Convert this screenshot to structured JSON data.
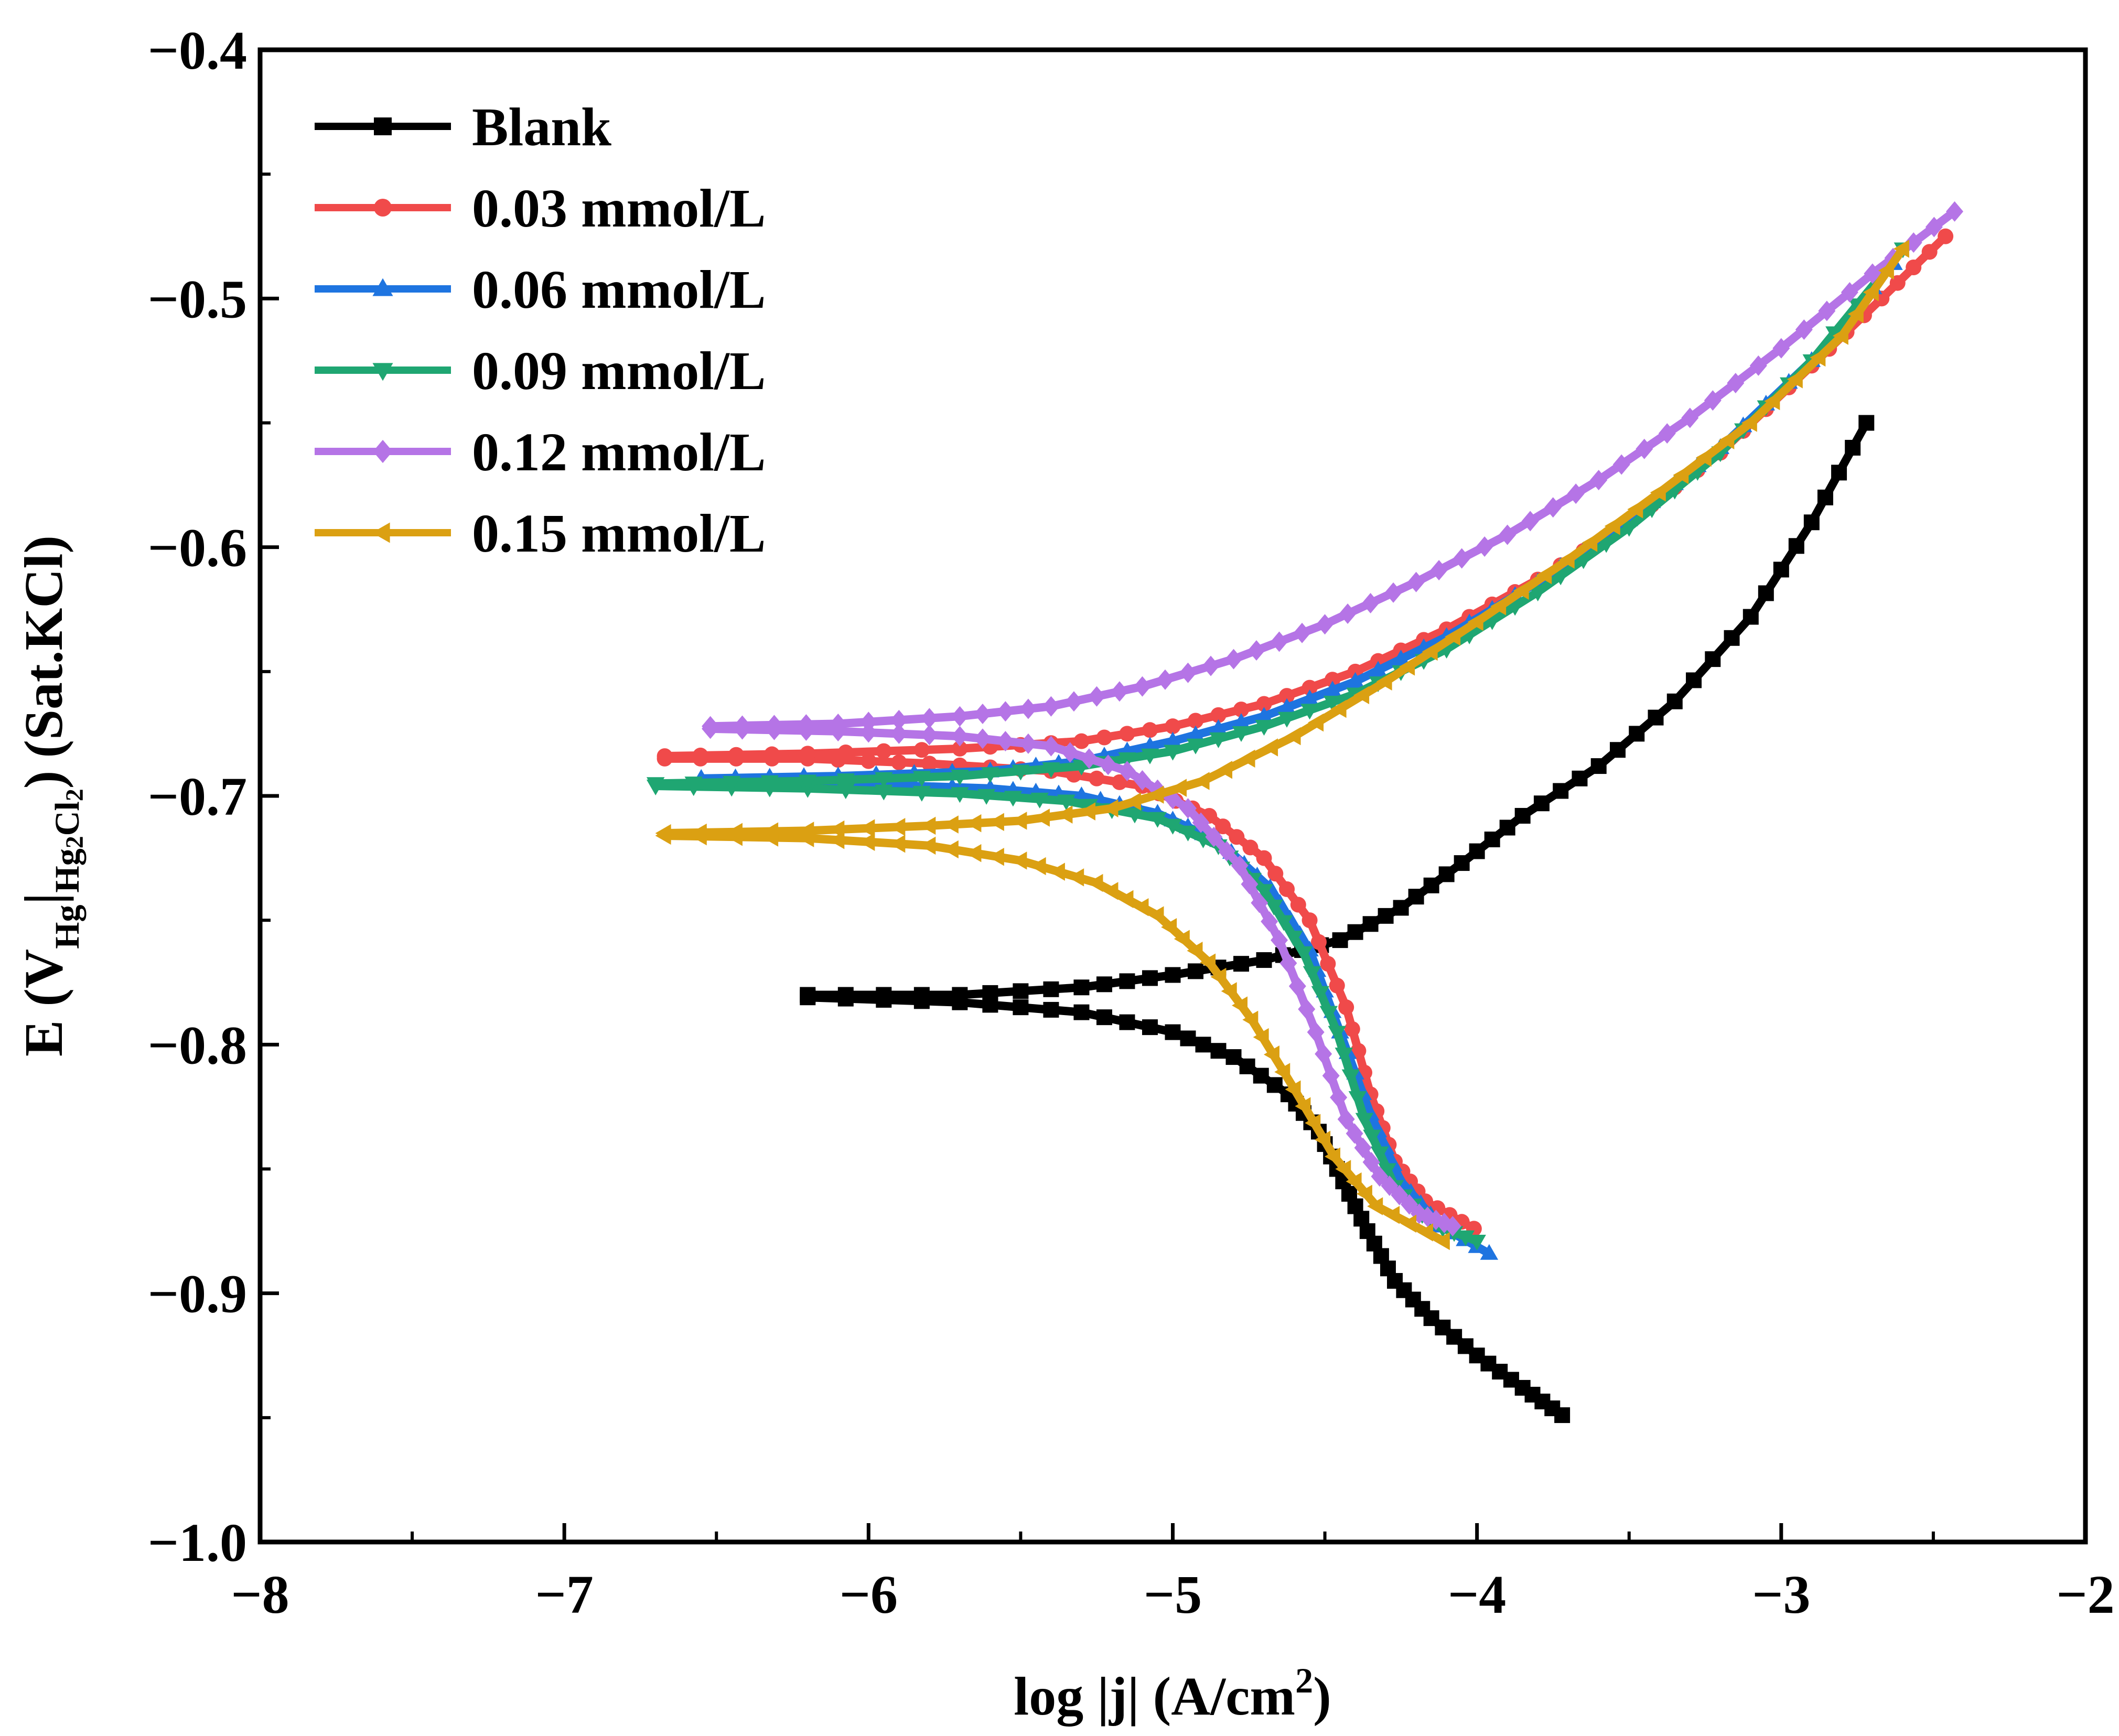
{
  "chart_data": {
    "type": "line",
    "title": "",
    "xlabel": {
      "prefix": "log |j| (A/cm",
      "sup": "2",
      "suffix": ")"
    },
    "ylabel": {
      "e": "E (",
      "v": "V",
      "sub1": "Hg",
      "sep": "|",
      "sub2": "Hg",
      "sub3": "2",
      "sub4": "Cl",
      "sub5": "2",
      "close": ")",
      "ref": "(Sat.KCl)"
    },
    "xlim": [
      -8,
      -2
    ],
    "ylim": [
      -1.0,
      -0.4
    ],
    "x_ticks": [
      -8,
      -7,
      -6,
      -5,
      -4,
      -3,
      -2
    ],
    "x_tick_labels": [
      "−8",
      "−7",
      "−6",
      "−5",
      "−4",
      "−3",
      "−2"
    ],
    "y_ticks": [
      -1.0,
      -0.9,
      -0.8,
      -0.7,
      -0.6,
      -0.5,
      -0.4
    ],
    "y_tick_labels": [
      "−1.0",
      "−0.9",
      "−0.8",
      "−0.7",
      "−0.6",
      "−0.5",
      "−0.4"
    ],
    "grid": false,
    "legend_position": "top-left",
    "series": [
      {
        "name": "Blank",
        "color": "#000000",
        "marker": "square",
        "cathodic": [
          [
            -6.2,
            -0.781
          ],
          [
            -5.7,
            -0.783
          ],
          [
            -5.3,
            -0.787
          ],
          [
            -5.0,
            -0.795
          ],
          [
            -4.8,
            -0.805
          ],
          [
            -4.62,
            -0.82
          ],
          [
            -4.52,
            -0.835
          ],
          [
            -4.44,
            -0.855
          ],
          [
            -4.36,
            -0.875
          ],
          [
            -4.27,
            -0.895
          ],
          [
            -4.15,
            -0.91
          ],
          [
            -4.0,
            -0.925
          ],
          [
            -3.85,
            -0.938
          ],
          [
            -3.72,
            -0.949
          ]
        ],
        "anodic": [
          [
            -6.2,
            -0.78
          ],
          [
            -5.7,
            -0.78
          ],
          [
            -5.3,
            -0.777
          ],
          [
            -5.0,
            -0.772
          ],
          [
            -4.7,
            -0.766
          ],
          [
            -4.45,
            -0.758
          ],
          [
            -4.25,
            -0.745
          ],
          [
            -4.05,
            -0.727
          ],
          [
            -3.85,
            -0.708
          ],
          [
            -3.6,
            -0.688
          ],
          [
            -3.35,
            -0.662
          ],
          [
            -3.1,
            -0.628
          ],
          [
            -2.9,
            -0.59
          ],
          [
            -2.72,
            -0.55
          ]
        ]
      },
      {
        "name": "0.03 mmol/L",
        "color": "#f04a4a",
        "marker": "circle",
        "cathodic": [
          [
            -6.67,
            -0.685
          ],
          [
            -6.2,
            -0.685
          ],
          [
            -5.8,
            -0.687
          ],
          [
            -5.4,
            -0.69
          ],
          [
            -5.1,
            -0.696
          ],
          [
            -4.88,
            -0.708
          ],
          [
            -4.7,
            -0.725
          ],
          [
            -4.55,
            -0.75
          ],
          [
            -4.43,
            -0.785
          ],
          [
            -4.35,
            -0.82
          ],
          [
            -4.27,
            -0.847
          ],
          [
            -4.17,
            -0.863
          ],
          [
            -4.01,
            -0.874
          ]
        ],
        "anodic": [
          [
            -6.67,
            -0.684
          ],
          [
            -6.2,
            -0.683
          ],
          [
            -5.7,
            -0.681
          ],
          [
            -5.3,
            -0.678
          ],
          [
            -5.0,
            -0.672
          ],
          [
            -4.7,
            -0.663
          ],
          [
            -4.4,
            -0.65
          ],
          [
            -4.1,
            -0.633
          ],
          [
            -3.8,
            -0.613
          ],
          [
            -3.5,
            -0.59
          ],
          [
            -3.2,
            -0.562
          ],
          [
            -2.9,
            -0.527
          ],
          [
            -2.67,
            -0.5
          ],
          [
            -2.46,
            -0.475
          ]
        ]
      },
      {
        "name": "0.06 mmol/L",
        "color": "#1e74e0",
        "marker": "triangle-up",
        "cathodic": [
          [
            -6.55,
            -0.694
          ],
          [
            -6.1,
            -0.695
          ],
          [
            -5.6,
            -0.697
          ],
          [
            -5.3,
            -0.7
          ],
          [
            -5.05,
            -0.707
          ],
          [
            -4.85,
            -0.718
          ],
          [
            -4.68,
            -0.737
          ],
          [
            -4.55,
            -0.762
          ],
          [
            -4.45,
            -0.795
          ],
          [
            -4.35,
            -0.828
          ],
          [
            -4.25,
            -0.855
          ],
          [
            -4.12,
            -0.873
          ],
          [
            -3.96,
            -0.884
          ]
        ],
        "anodic": [
          [
            -6.55,
            -0.693
          ],
          [
            -6.1,
            -0.692
          ],
          [
            -5.6,
            -0.69
          ],
          [
            -5.3,
            -0.686
          ],
          [
            -5.0,
            -0.678
          ],
          [
            -4.7,
            -0.668
          ],
          [
            -4.4,
            -0.654
          ],
          [
            -4.1,
            -0.636
          ],
          [
            -3.8,
            -0.614
          ],
          [
            -3.5,
            -0.589
          ],
          [
            -3.2,
            -0.56
          ],
          [
            -2.9,
            -0.525
          ],
          [
            -2.63,
            -0.486
          ]
        ]
      },
      {
        "name": "0.09 mmol/L",
        "color": "#1fa672",
        "marker": "triangle-down",
        "cathodic": [
          [
            -6.7,
            -0.696
          ],
          [
            -6.2,
            -0.697
          ],
          [
            -5.7,
            -0.699
          ],
          [
            -5.35,
            -0.702
          ],
          [
            -5.05,
            -0.709
          ],
          [
            -4.85,
            -0.72
          ],
          [
            -4.7,
            -0.738
          ],
          [
            -4.57,
            -0.763
          ],
          [
            -4.46,
            -0.795
          ],
          [
            -4.37,
            -0.83
          ],
          [
            -4.27,
            -0.857
          ],
          [
            -4.15,
            -0.872
          ],
          [
            -4.0,
            -0.879
          ]
        ],
        "anodic": [
          [
            -6.7,
            -0.695
          ],
          [
            -6.2,
            -0.694
          ],
          [
            -5.7,
            -0.692
          ],
          [
            -5.3,
            -0.688
          ],
          [
            -5.0,
            -0.682
          ],
          [
            -4.7,
            -0.672
          ],
          [
            -4.4,
            -0.659
          ],
          [
            -4.1,
            -0.641
          ],
          [
            -3.8,
            -0.618
          ],
          [
            -3.5,
            -0.592
          ],
          [
            -3.2,
            -0.562
          ],
          [
            -2.9,
            -0.525
          ],
          [
            -2.6,
            -0.48
          ]
        ]
      },
      {
        "name": "0.12 mmol/L",
        "color": "#b574e6",
        "marker": "diamond",
        "cathodic": [
          [
            -6.52,
            -0.673
          ],
          [
            -6.1,
            -0.674
          ],
          [
            -5.7,
            -0.676
          ],
          [
            -5.4,
            -0.68
          ],
          [
            -5.15,
            -0.69
          ],
          [
            -4.95,
            -0.705
          ],
          [
            -4.78,
            -0.728
          ],
          [
            -4.65,
            -0.758
          ],
          [
            -4.53,
            -0.795
          ],
          [
            -4.43,
            -0.83
          ],
          [
            -4.32,
            -0.853
          ],
          [
            -4.19,
            -0.868
          ],
          [
            -4.08,
            -0.873
          ]
        ],
        "anodic": [
          [
            -6.52,
            -0.672
          ],
          [
            -6.1,
            -0.671
          ],
          [
            -5.7,
            -0.668
          ],
          [
            -5.4,
            -0.664
          ],
          [
            -5.1,
            -0.656
          ],
          [
            -4.8,
            -0.645
          ],
          [
            -4.5,
            -0.631
          ],
          [
            -4.2,
            -0.614
          ],
          [
            -3.9,
            -0.595
          ],
          [
            -3.6,
            -0.573
          ],
          [
            -3.3,
            -0.548
          ],
          [
            -3.0,
            -0.52
          ],
          [
            -2.7,
            -0.49
          ],
          [
            -2.43,
            -0.465
          ]
        ]
      },
      {
        "name": "0.15 mmol/L",
        "color": "#dba012",
        "marker": "triangle-left",
        "cathodic": [
          [
            -6.67,
            -0.716
          ],
          [
            -6.2,
            -0.717
          ],
          [
            -5.8,
            -0.72
          ],
          [
            -5.5,
            -0.726
          ],
          [
            -5.25,
            -0.735
          ],
          [
            -5.05,
            -0.748
          ],
          [
            -4.88,
            -0.767
          ],
          [
            -4.74,
            -0.79
          ],
          [
            -4.6,
            -0.818
          ],
          [
            -4.47,
            -0.845
          ],
          [
            -4.33,
            -0.865
          ],
          [
            -4.11,
            -0.879
          ]
        ],
        "anodic": [
          [
            -6.67,
            -0.715
          ],
          [
            -6.2,
            -0.714
          ],
          [
            -5.8,
            -0.712
          ],
          [
            -5.5,
            -0.71
          ],
          [
            -5.2,
            -0.705
          ],
          [
            -4.9,
            -0.694
          ],
          [
            -4.6,
            -0.676
          ],
          [
            -4.3,
            -0.654
          ],
          [
            -4.0,
            -0.63
          ],
          [
            -3.7,
            -0.605
          ],
          [
            -3.4,
            -0.578
          ],
          [
            -3.1,
            -0.55
          ],
          [
            -2.8,
            -0.515
          ],
          [
            -2.6,
            -0.48
          ]
        ]
      }
    ]
  }
}
